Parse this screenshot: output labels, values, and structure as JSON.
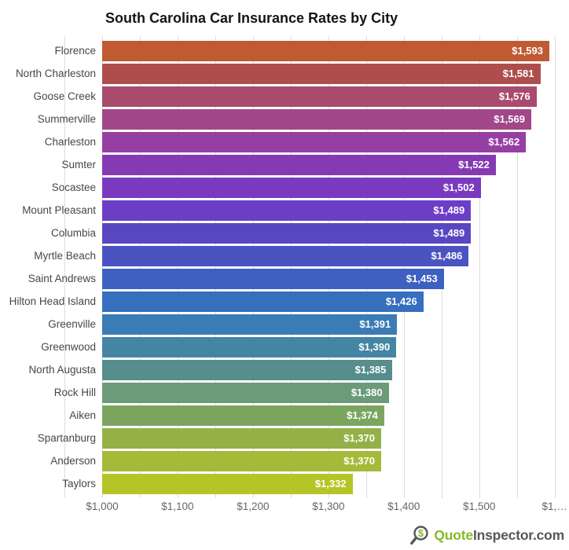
{
  "chart_data": {
    "type": "bar",
    "orientation": "horizontal",
    "title": "South Carolina Car Insurance Rates by City",
    "xlabel": "",
    "ylabel": "",
    "categories": [
      "Florence",
      "North Charleston",
      "Goose Creek",
      "Summerville",
      "Charleston",
      "Sumter",
      "Socastee",
      "Mount Pleasant",
      "Columbia",
      "Myrtle Beach",
      "Saint Andrews",
      "Hilton Head Island",
      "Greenville",
      "Greenwood",
      "North Augusta",
      "Rock Hill",
      "Aiken",
      "Spartanburg",
      "Anderson",
      "Taylors"
    ],
    "values": [
      1593,
      1581,
      1576,
      1569,
      1562,
      1522,
      1502,
      1489,
      1489,
      1486,
      1453,
      1426,
      1391,
      1390,
      1385,
      1380,
      1374,
      1370,
      1370,
      1332
    ],
    "value_labels": [
      "$1,593",
      "$1,581",
      "$1,576",
      "$1,569",
      "$1,562",
      "$1,522",
      "$1,502",
      "$1,489",
      "$1,489",
      "$1,486",
      "$1,453",
      "$1,426",
      "$1,391",
      "$1,390",
      "$1,385",
      "$1,380",
      "$1,374",
      "$1,370",
      "$1,370",
      "$1,332"
    ],
    "bar_colors": [
      "#BF5A33",
      "#AE4E4C",
      "#A84B6D",
      "#A1478A",
      "#963FA3",
      "#8539B2",
      "#7B39C0",
      "#6C3EC6",
      "#5847C0",
      "#4B53C0",
      "#3E60C0",
      "#356FBE",
      "#3B7CB6",
      "#4585A4",
      "#558E8C",
      "#6C9B79",
      "#7CA660",
      "#94B147",
      "#A5BA39",
      "#B5C527"
    ],
    "bar_base_value": 1000,
    "xlim": [
      950,
      1619
    ],
    "x_ticks": [
      {
        "value": 1000,
        "label": "$1,000"
      },
      {
        "value": 1100,
        "label": "$1,100"
      },
      {
        "value": 1200,
        "label": "$1,200"
      },
      {
        "value": 1300,
        "label": "$1,300"
      },
      {
        "value": 1400,
        "label": "$1,400"
      },
      {
        "value": 1500,
        "label": "$1,500"
      },
      {
        "value": 1600,
        "label": "$1,…"
      }
    ],
    "gridlines": {
      "from": 950,
      "to": 1600,
      "step": 50,
      "color": "#dcdcdc"
    },
    "legend": "none",
    "value_label_color": "#ffffff"
  },
  "footer": {
    "icon": "magnifier-dollar-icon",
    "icon_char": "$",
    "brand_quote": "Quote",
    "brand_rest": "Inspector.com",
    "brand_green": "#83BA28",
    "brand_gray": "#56575A"
  }
}
